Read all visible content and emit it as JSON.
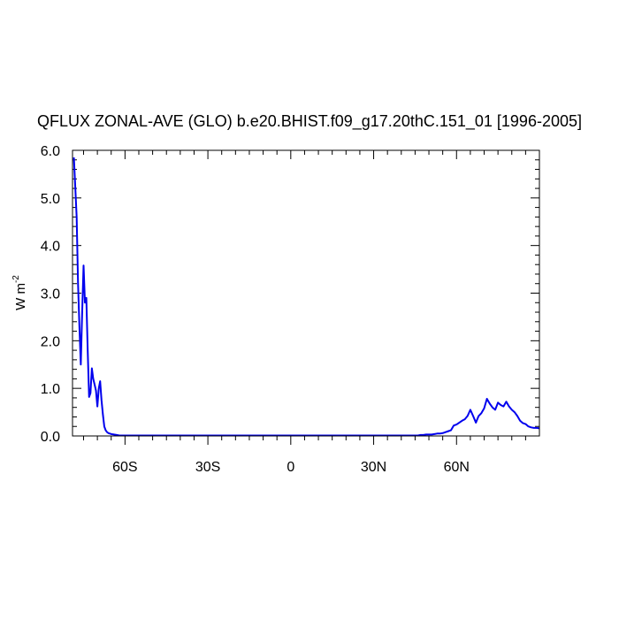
{
  "chart_data": {
    "type": "line",
    "title": "QFLUX ZONAL-AVE (GLO) b.e20.BHIST.f09_g17.20thC.151_01 [1996-2005]",
    "ylabel": "W m",
    "ylabel_sup": "-2",
    "xlim": [
      -79,
      90
    ],
    "ylim": [
      0,
      6
    ],
    "x_ticks": [
      {
        "value": -60,
        "label": "60S"
      },
      {
        "value": -30,
        "label": "30S"
      },
      {
        "value": 0,
        "label": "0"
      },
      {
        "value": 30,
        "label": "30N"
      },
      {
        "value": 60,
        "label": "60N"
      }
    ],
    "y_ticks": [
      {
        "value": 0,
        "label": "0.0"
      },
      {
        "value": 1,
        "label": "1.0"
      },
      {
        "value": 2,
        "label": "2.0"
      },
      {
        "value": 3,
        "label": "3.0"
      },
      {
        "value": 4,
        "label": "4.0"
      },
      {
        "value": 5,
        "label": "5.0"
      },
      {
        "value": 6,
        "label": "6.0"
      }
    ],
    "line_color": "#0000ee",
    "series": [
      {
        "x": [
          -78.5,
          -77.5,
          -77,
          -76.5,
          -76,
          -75.5,
          -75,
          -74.5,
          -74,
          -73.5,
          -73,
          -72.5,
          -72,
          -71.5,
          -71,
          -70.5,
          -70,
          -69.5,
          -69,
          -68.5,
          -68,
          -67.5,
          -67,
          -66.5,
          -66,
          -65.5,
          -65,
          -64,
          -63,
          -62,
          -60,
          -55,
          -50,
          -40,
          -30,
          -20,
          -10,
          0,
          10,
          20,
          30,
          35,
          40,
          45,
          46,
          47,
          48,
          49,
          50,
          51,
          52,
          53,
          54,
          55,
          56,
          57,
          58,
          59,
          60,
          61,
          62,
          63,
          64,
          65,
          66,
          67,
          68,
          69,
          70,
          71,
          72,
          73,
          74,
          75,
          76,
          77,
          78,
          79,
          80,
          81,
          82,
          83,
          84,
          85,
          86,
          87,
          88,
          89,
          90
        ],
        "y": [
          5.85,
          4.6,
          3.2,
          2.3,
          1.5,
          2.6,
          3.58,
          2.8,
          2.9,
          1.8,
          0.82,
          0.9,
          1.42,
          1.2,
          1.08,
          0.95,
          0.62,
          1.0,
          1.15,
          0.75,
          0.45,
          0.2,
          0.12,
          0.08,
          0.06,
          0.05,
          0.04,
          0.03,
          0.02,
          0.01,
          0.01,
          0.01,
          0.01,
          0.01,
          0.01,
          0.01,
          0.01,
          0.01,
          0.01,
          0.01,
          0.01,
          0.01,
          0.01,
          0.01,
          0.01,
          0.02,
          0.02,
          0.03,
          0.03,
          0.03,
          0.04,
          0.05,
          0.05,
          0.06,
          0.08,
          0.1,
          0.12,
          0.22,
          0.24,
          0.28,
          0.32,
          0.35,
          0.42,
          0.55,
          0.42,
          0.28,
          0.42,
          0.48,
          0.58,
          0.78,
          0.68,
          0.6,
          0.55,
          0.7,
          0.65,
          0.62,
          0.72,
          0.62,
          0.55,
          0.5,
          0.42,
          0.32,
          0.27,
          0.25,
          0.2,
          0.18,
          0.17,
          0.17,
          0.16
        ]
      }
    ]
  }
}
